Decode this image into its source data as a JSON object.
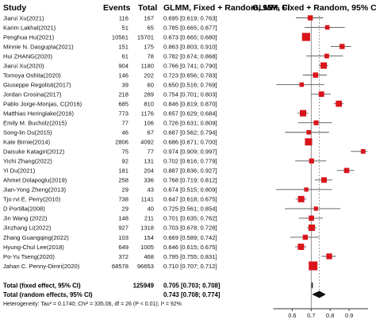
{
  "headers": {
    "study": "Study",
    "events": "Events",
    "total": "Total",
    "ci": "GLMM, Fixed + Random, 95% CI",
    "plot": "GLMM, Fixed + Random, 95% CI"
  },
  "chart_data": {
    "type": "forest",
    "xlim": [
      0.5,
      1.0
    ],
    "xticks": [
      "0.6",
      "0.7",
      "0.8",
      "0.9"
    ],
    "reference_line": 0.7,
    "colors": {
      "marker": "#d9141b",
      "ci_line": "#555555",
      "diamond": "#111111",
      "axis": "#333333"
    },
    "studies": [
      {
        "study": "Jiarui Xu(2021)",
        "events": "116",
        "total": "167",
        "estimate": 0.695,
        "lower": 0.619,
        "upper": 0.763,
        "ci_text": "0.695 [0.619; 0.763]"
      },
      {
        "study": "Karim Lakhal(2021)",
        "events": "51",
        "total": "65",
        "estimate": 0.785,
        "lower": 0.665,
        "upper": 0.877,
        "ci_text": "0.785 [0.665; 0.877]"
      },
      {
        "study": "Penghua Hu(2021)",
        "events": "10561",
        "total": "15701",
        "estimate": 0.673,
        "lower": 0.665,
        "upper": 0.68,
        "ci_text": "0.673 [0.665; 0.680]"
      },
      {
        "study": "Minnie N. Dasgupta(2021)",
        "events": "151",
        "total": "175",
        "estimate": 0.863,
        "lower": 0.803,
        "upper": 0.91,
        "ci_text": "0.863 [0.803; 0.910]"
      },
      {
        "study": "Hui ZHANG(2020)",
        "events": "61",
        "total": "78",
        "estimate": 0.782,
        "lower": 0.674,
        "upper": 0.868,
        "ci_text": "0.782 [0.674; 0.868]"
      },
      {
        "study": "Jiarui Xu(2020)",
        "events": "904",
        "total": "1180",
        "estimate": 0.766,
        "lower": 0.741,
        "upper": 0.79,
        "ci_text": "0.766 [0.741; 0.790]"
      },
      {
        "study": "Tomoya Oshita(2020)",
        "events": "146",
        "total": "202",
        "estimate": 0.723,
        "lower": 0.656,
        "upper": 0.783,
        "ci_text": "0.723 [0.656; 0.783]"
      },
      {
        "study": "Giuseppe Regolisti(2017)",
        "events": "39",
        "total": "60",
        "estimate": 0.65,
        "lower": 0.516,
        "upper": 0.769,
        "ci_text": "0.650 [0.516; 0.769]"
      },
      {
        "study": "Jordan Crosina(2017)",
        "events": "218",
        "total": "289",
        "estimate": 0.754,
        "lower": 0.701,
        "upper": 0.803,
        "ci_text": "0.754 [0.701; 0.803]"
      },
      {
        "study": "Pablo Jorge-Monjas, C(2016)",
        "events": "685",
        "total": "810",
        "estimate": 0.846,
        "lower": 0.819,
        "upper": 0.87,
        "ci_text": "0.846 [0.819; 0.870]"
      },
      {
        "study": "Matthias Heringlake(2016)",
        "events": "773",
        "total": "1176",
        "estimate": 0.657,
        "lower": 0.629,
        "upper": 0.684,
        "ci_text": "0.657 [0.629; 0.684]"
      },
      {
        "study": "Emily M. Bucholz(2015)",
        "events": "77",
        "total": "106",
        "estimate": 0.726,
        "lower": 0.631,
        "upper": 0.809,
        "ci_text": "0.726 [0.631; 0.809]"
      },
      {
        "study": "Song-lin Du(2015)",
        "events": "46",
        "total": "67",
        "estimate": 0.687,
        "lower": 0.562,
        "upper": 0.794,
        "ci_text": "0.687 [0.562; 0.794]"
      },
      {
        "study": "Kate Birnie(2014)",
        "events": "2806",
        "total": "4092",
        "estimate": 0.686,
        "lower": 0.671,
        "upper": 0.7,
        "ci_text": "0.686 [0.671; 0.700]"
      },
      {
        "study": "Daisuke Katagiri(2012)",
        "events": "75",
        "total": "77",
        "estimate": 0.974,
        "lower": 0.909,
        "upper": 0.997,
        "ci_text": "0.974 [0.909; 0.997]"
      },
      {
        "study": "Yichi Zhang(2022)",
        "events": "92",
        "total": "131",
        "estimate": 0.702,
        "lower": 0.616,
        "upper": 0.779,
        "ci_text": "0.702 [0.616; 0.779]"
      },
      {
        "study": "Yi Du(2021)",
        "events": "181",
        "total": "204",
        "estimate": 0.887,
        "labelweight": 0,
        "lower": 0.836,
        "upper": 0.927,
        "ci_text": "0.887 [0.836; 0.927]"
      },
      {
        "study": "Ahmet Dolapoglu(2019)",
        "events": "258",
        "total": "336",
        "estimate": 0.768,
        "lower": 0.719,
        "upper": 0.812,
        "ci_text": "0.768 [0.719; 0.812]"
      },
      {
        "study": "Jian-Yong Zheng(2013)",
        "events": "29",
        "total": "43",
        "estimate": 0.674,
        "lower": 0.515,
        "upper": 0.809,
        "ci_text": "0.674 [0.515; 0.809]"
      },
      {
        "study": "Tjo rvi E. Perry(2010)",
        "events": "738",
        "total": "1141",
        "estimate": 0.647,
        "lower": 0.618,
        "upper": 0.675,
        "ci_text": "0.647 [0.618; 0.675]"
      },
      {
        "study": "D Portilla(2008)",
        "events": "29",
        "total": "40",
        "estimate": 0.725,
        "lower": 0.561,
        "upper": 0.854,
        "ci_text": "0.725 [0.561; 0.854]"
      },
      {
        "study": "Jin Wang (2022)",
        "events": "148",
        "total": "211",
        "estimate": 0.701,
        "lower": 0.635,
        "upper": 0.762,
        "ci_text": "0.701 [0.635; 0.762]"
      },
      {
        "study": "Jinzhang Li(2022)",
        "events": "927",
        "total": "1318",
        "estimate": 0.703,
        "lower": 0.678,
        "upper": 0.728,
        "ci_text": "0.703 [0.678; 0.728]"
      },
      {
        "study": "Zhang Guangqing(2022)",
        "events": "103",
        "total": "154",
        "estimate": 0.669,
        "lower": 0.589,
        "upper": 0.742,
        "ci_text": "0.669 [0.589; 0.742]"
      },
      {
        "study": "Hyung-Chul Lee(2018)",
        "events": "649",
        "total": "1005",
        "estimate": 0.646,
        "lower": 0.615,
        "upper": 0.675,
        "ci_text": "0.646 [0.615; 0.675]"
      },
      {
        "study": "Po-Yu Tseng(2020)",
        "events": "372",
        "total": "468",
        "estimate": 0.795,
        "lower": 0.755,
        "upper": 0.831,
        "ci_text": "0.795 [0.755; 0.831]"
      },
      {
        "study": "Jahan C. Penny-Dimri(2020)",
        "events": "68578",
        "total": "96653",
        "estimate": 0.71,
        "lower": 0.707,
        "upper": 0.712,
        "ci_text": "0.710 [0.707; 0.712]"
      }
    ],
    "fixed": {
      "label": "Total (fixed effect, 95% CI)",
      "total": "125949",
      "estimate": 0.705,
      "lower": 0.703,
      "upper": 0.708,
      "ci_text": "0.705 [0.703; 0.708]"
    },
    "random": {
      "label": "Total (random effects, 95% CI)",
      "estimate": 0.743,
      "lower": 0.708,
      "upper": 0.774,
      "ci_text": "0.743 [0.708; 0.774]"
    },
    "heterogeneity": "Heterogeneity: Tau² = 0.1740; Chi² = 335.06, df = 26 (P < 0.01); I² = 92%"
  }
}
